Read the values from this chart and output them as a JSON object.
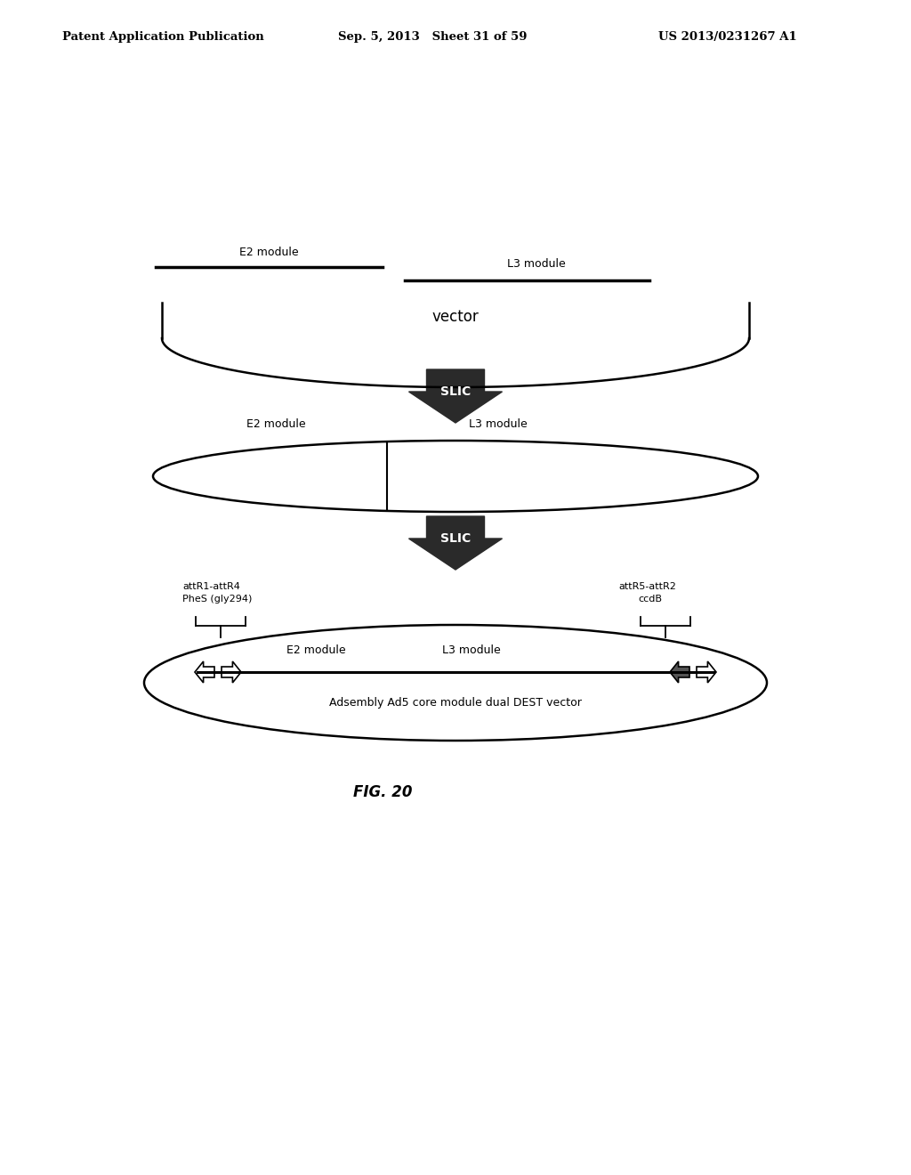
{
  "header_left": "Patent Application Publication",
  "header_mid": "Sep. 5, 2013   Sheet 31 of 59",
  "header_right": "US 2013/0231267 A1",
  "fig_label": "FIG. 20",
  "background_color": "#ffffff",
  "text_color": "#000000",
  "slic_bg": "#2a2a2a",
  "slic_text": "#ffffff"
}
